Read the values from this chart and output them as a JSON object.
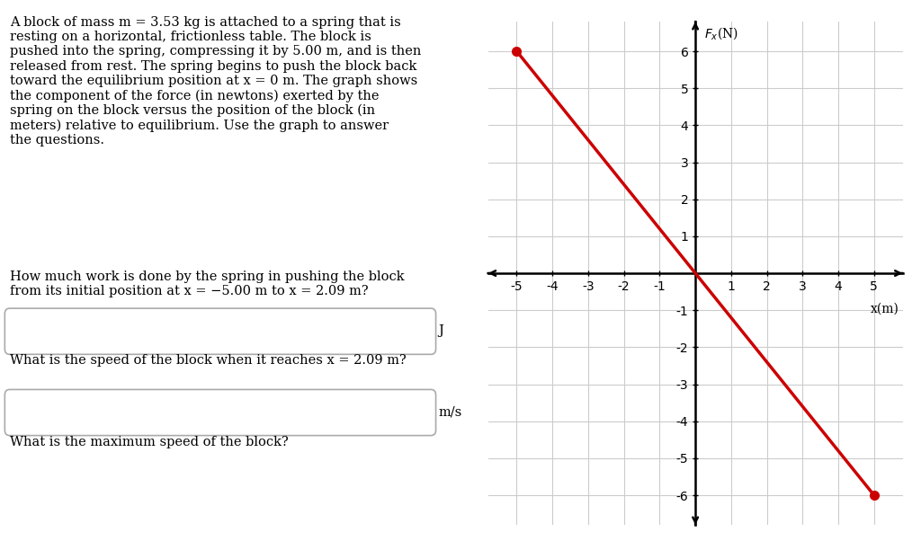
{
  "line_x": [
    -5,
    5
  ],
  "line_y": [
    6,
    -6
  ],
  "dot_points": [
    [
      -5,
      6
    ],
    [
      5,
      -6
    ]
  ],
  "dot_color": "#cc0000",
  "line_color": "#cc0000",
  "line_width": 2.5,
  "dot_size": 80,
  "xlim": [
    -5.8,
    5.8
  ],
  "ylim": [
    -6.8,
    6.8
  ],
  "xticks": [
    -5,
    -4,
    -3,
    -2,
    -1,
    0,
    1,
    2,
    3,
    4,
    5
  ],
  "yticks": [
    -6,
    -5,
    -4,
    -3,
    -2,
    -1,
    0,
    1,
    2,
    3,
    4,
    5,
    6
  ],
  "xlabel": "x(m)",
  "ylabel": "F_x(N)",
  "grid_color": "#cccccc",
  "background_color": "#ffffff",
  "text_paragraph1": "A block of mass m = 3.53 kg is attached to a spring that is\nresting on a horizontal, frictionless table. The block is\npushed into the spring, compressing it by 5.00 m, and is then\nreleased from rest. The spring begins to push the block back\ntoward the equilibrium position at x = 0 m. The graph shows\nthe component of the force (in newtons) exerted by the\nspring on the block versus the position of the block (in\nmeters) relative to equilibrium. Use the graph to answer\nthe questions.",
  "text_question1": "How much work is done by the spring in pushing the block\nfrom its initial position at x = −5.00 m to x = 2.09 m?",
  "text_unit1": "J",
  "text_question2": "What is the speed of the block when it reaches x = 2.09 m?",
  "text_unit2": "m/s",
  "text_question3": "What is the maximum speed of the block?",
  "fig_width": 10.24,
  "fig_height": 6.02
}
